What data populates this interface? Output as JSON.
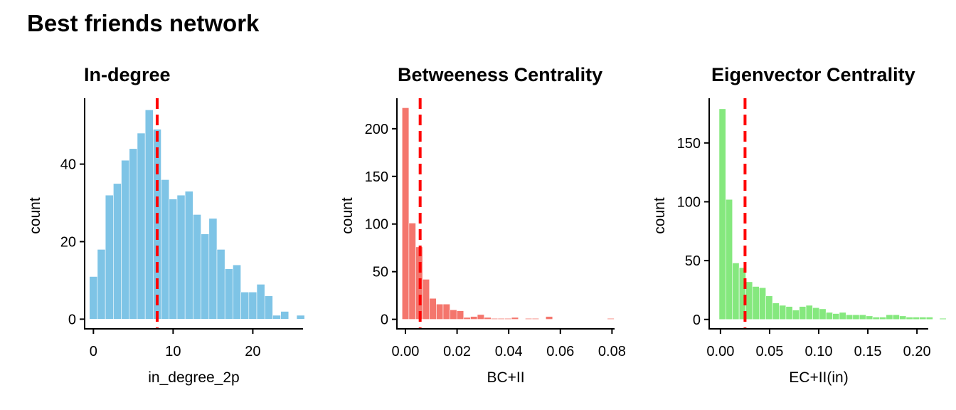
{
  "title": "Best friends network",
  "chart_data": [
    {
      "type": "bar",
      "title": "In-degree",
      "xlabel": "in_degree_2p",
      "ylabel": "count",
      "color": "#7EC4E6",
      "mean_line_color": "#FF0000",
      "mean": 8,
      "xlim": [
        -1.1,
        26.3
      ],
      "ylim": [
        -2.5,
        57
      ],
      "xticks": [
        0,
        10,
        20
      ],
      "xtick_labels": [
        "0",
        "10",
        "20"
      ],
      "yticks": [
        0,
        20,
        40
      ],
      "ytick_labels": [
        "0",
        "20",
        "40"
      ],
      "bin_start": -0.5,
      "bin_width": 1,
      "values": [
        11,
        18,
        32,
        35,
        41,
        44,
        48,
        54,
        49,
        36,
        31,
        32,
        33,
        27,
        22,
        26,
        18,
        13,
        14,
        7,
        7,
        9,
        6,
        1,
        2,
        0,
        1
      ]
    },
    {
      "type": "bar",
      "title": "Betweeness Centrality",
      "xlabel": "BC+II",
      "ylabel": "count",
      "color": "#F4766D",
      "mean_line_color": "#FF0000",
      "mean": 0.0057,
      "xlim": [
        -0.0033,
        0.081
      ],
      "ylim": [
        -10,
        232
      ],
      "xticks": [
        0,
        0.02,
        0.04,
        0.06,
        0.08
      ],
      "xtick_labels": [
        "0.00",
        "0.02",
        "0.04",
        "0.06",
        "0.08"
      ],
      "yticks": [
        0,
        50,
        100,
        150,
        200
      ],
      "ytick_labels": [
        "0",
        "50",
        "100",
        "150",
        "200"
      ],
      "bin_start": -0.0013,
      "bin_width": 0.00265,
      "values": [
        222,
        101,
        76,
        42,
        22,
        16,
        16,
        10,
        9,
        2,
        3,
        5,
        2,
        1,
        1,
        1,
        2,
        0,
        1,
        1,
        0,
        3,
        0,
        0,
        0,
        0,
        0,
        0,
        0,
        0,
        1
      ]
    },
    {
      "type": "bar",
      "title": "Eigenvector Centrality",
      "xlabel": "EC+II(in)",
      "ylabel": "count",
      "color": "#85E87E",
      "mean_line_color": "#FF0000",
      "mean": 0.025,
      "xlim": [
        -0.0115,
        0.2115
      ],
      "ylim": [
        -8,
        188
      ],
      "xticks": [
        0,
        0.05,
        0.1,
        0.15,
        0.2
      ],
      "xtick_labels": [
        "0.00",
        "0.05",
        "0.10",
        "0.15",
        "0.20"
      ],
      "yticks": [
        0,
        50,
        100,
        150
      ],
      "ytick_labels": [
        "0",
        "50",
        "100",
        "150"
      ],
      "bin_start": -0.0014,
      "bin_width": 0.0068,
      "values": [
        179,
        102,
        48,
        44,
        32,
        28,
        27,
        20,
        14,
        12,
        11,
        8,
        11,
        12,
        10,
        9,
        6,
        5,
        6,
        4,
        4,
        4,
        3,
        2,
        2,
        4,
        4,
        3,
        2,
        2,
        2,
        2,
        0,
        1,
        0,
        0,
        0,
        1,
        0,
        0,
        1,
        0,
        1
      ]
    }
  ]
}
